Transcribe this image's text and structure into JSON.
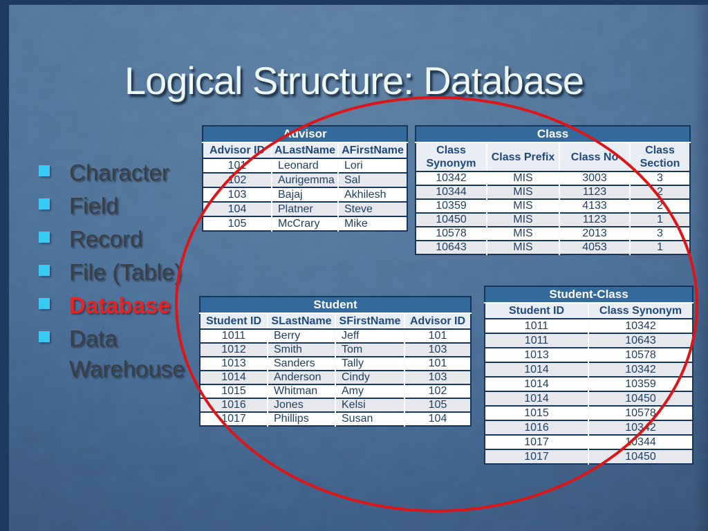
{
  "slide": {
    "title": "Logical Structure: Database",
    "bullets": [
      {
        "label": "Character"
      },
      {
        "label": "Field"
      },
      {
        "label": "Record"
      },
      {
        "label": "File (Table)"
      },
      {
        "label": "Database",
        "emphasis": true
      },
      {
        "label": "Data Warehouse"
      }
    ]
  },
  "tables": {
    "advisor": {
      "title": "Advisor",
      "columns": [
        "Advisor ID",
        "ALastName",
        "AFirstName"
      ],
      "rows": [
        [
          "101",
          "Leonard",
          "Lori"
        ],
        [
          "102",
          "Aurigemma",
          "Sal"
        ],
        [
          "103",
          "Bajaj",
          "Akhilesh"
        ],
        [
          "104",
          "Platner",
          "Steve"
        ],
        [
          "105",
          "McCrary",
          "Mike"
        ]
      ]
    },
    "class": {
      "title": "Class",
      "columns": [
        "Class Synonym",
        "Class Prefix",
        "Class No",
        "Class Section"
      ],
      "rows": [
        [
          "10342",
          "MIS",
          "3003",
          "3"
        ],
        [
          "10344",
          "MIS",
          "1123",
          "2"
        ],
        [
          "10359",
          "MIS",
          "4133",
          "2"
        ],
        [
          "10450",
          "MIS",
          "1123",
          "1"
        ],
        [
          "10578",
          "MIS",
          "2013",
          "3"
        ],
        [
          "10643",
          "MIS",
          "4053",
          "1"
        ]
      ]
    },
    "student": {
      "title": "Student",
      "columns": [
        "Student ID",
        "SLastName",
        "SFirstName",
        "Advisor ID"
      ],
      "rows": [
        [
          "1011",
          "Berry",
          "Jeff",
          "101"
        ],
        [
          "1012",
          "Smith",
          "Tom",
          "103"
        ],
        [
          "1013",
          "Sanders",
          "Tally",
          "101"
        ],
        [
          "1014",
          "Anderson",
          "Cindy",
          "103"
        ],
        [
          "1015",
          "Whitman",
          "Amy",
          "102"
        ],
        [
          "1016",
          "Jones",
          "Kelsi",
          "105"
        ],
        [
          "1017",
          "Phillips",
          "Susan",
          "104"
        ]
      ]
    },
    "student_class": {
      "title": "Student-Class",
      "columns": [
        "Student ID",
        "Class Synonym"
      ],
      "rows": [
        [
          "1011",
          "10342"
        ],
        [
          "1011",
          "10643"
        ],
        [
          "1013",
          "10578"
        ],
        [
          "1014",
          "10342"
        ],
        [
          "1014",
          "10359"
        ],
        [
          "1014",
          "10450"
        ],
        [
          "1015",
          "10578"
        ],
        [
          "1016",
          "10342"
        ],
        [
          "1017",
          "10344"
        ],
        [
          "1017",
          "10450"
        ]
      ]
    }
  },
  "annotations": {
    "red_ellipse": "circles the four database tables"
  },
  "colors": {
    "background_blue": "#4a6d94",
    "edge_navy": "#1d3b5f",
    "table_title_bar": "#34699c",
    "table_header_bg": "#e9edf4",
    "table_header_text": "#1f497d",
    "table_cell_text": "#1f3f63",
    "table_alt_row": "#e7e8ec",
    "table_border": "#17365d",
    "ellipse_red": "#dc1518",
    "bullet_cyan": "#38c9f4",
    "list_text": "#3a3e45",
    "database_red": "#e02626",
    "title_text": "#eef7f2"
  }
}
